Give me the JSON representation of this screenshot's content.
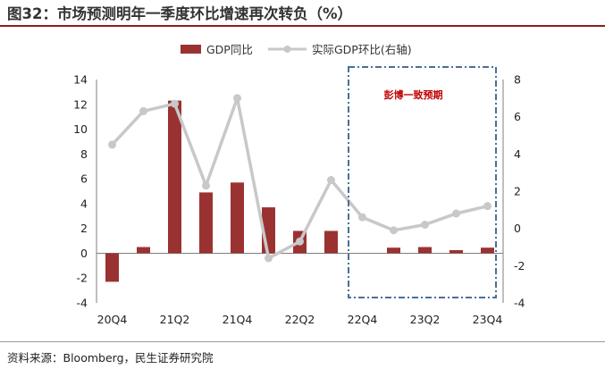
{
  "title": "图32：市场预测明年一季度环比增速再次转负（%）",
  "source": "资料来源：Bloomberg，民生证券研究院",
  "colors": {
    "bar": "#9B3232",
    "line": "#C8C8C8",
    "box": "#4A6F9A",
    "annotation": "#C00000",
    "rule": "#8B1E1E"
  },
  "chart_data": {
    "type": "bar+line",
    "categories": [
      "20Q4",
      "21Q1",
      "21Q2",
      "21Q3",
      "21Q4",
      "22Q1",
      "22Q2",
      "22Q3",
      "22Q4",
      "23Q1",
      "23Q2",
      "23Q3",
      "23Q4"
    ],
    "x_tick_labels": [
      "20Q4",
      "21Q2",
      "21Q4",
      "22Q2",
      "22Q4",
      "23Q2",
      "23Q4"
    ],
    "series": [
      {
        "name": "GDP同比",
        "type": "bar",
        "axis": "left",
        "values": [
          -2.3,
          0.5,
          12.3,
          4.9,
          5.7,
          3.7,
          1.8,
          1.8,
          null,
          0.45,
          0.5,
          0.25,
          0.45
        ]
      },
      {
        "name": "实际GDP环比(右轴)",
        "type": "line",
        "axis": "right",
        "values": [
          4.5,
          6.3,
          6.7,
          2.3,
          7.0,
          -1.6,
          -0.7,
          2.6,
          0.6,
          -0.1,
          0.2,
          0.8,
          1.2
        ]
      }
    ],
    "y_left": {
      "min": -4,
      "max": 14,
      "ticks": [
        -4,
        -2,
        0,
        2,
        4,
        6,
        8,
        10,
        12,
        14
      ]
    },
    "y_right": {
      "min": -4,
      "max": 8,
      "ticks": [
        -4,
        -2,
        0,
        2,
        4,
        6,
        8
      ]
    },
    "annotation": {
      "text": "彭博一致预期",
      "covers_categories": [
        "22Q4",
        "23Q4"
      ]
    },
    "legend_position": "top-center",
    "grid": false
  }
}
